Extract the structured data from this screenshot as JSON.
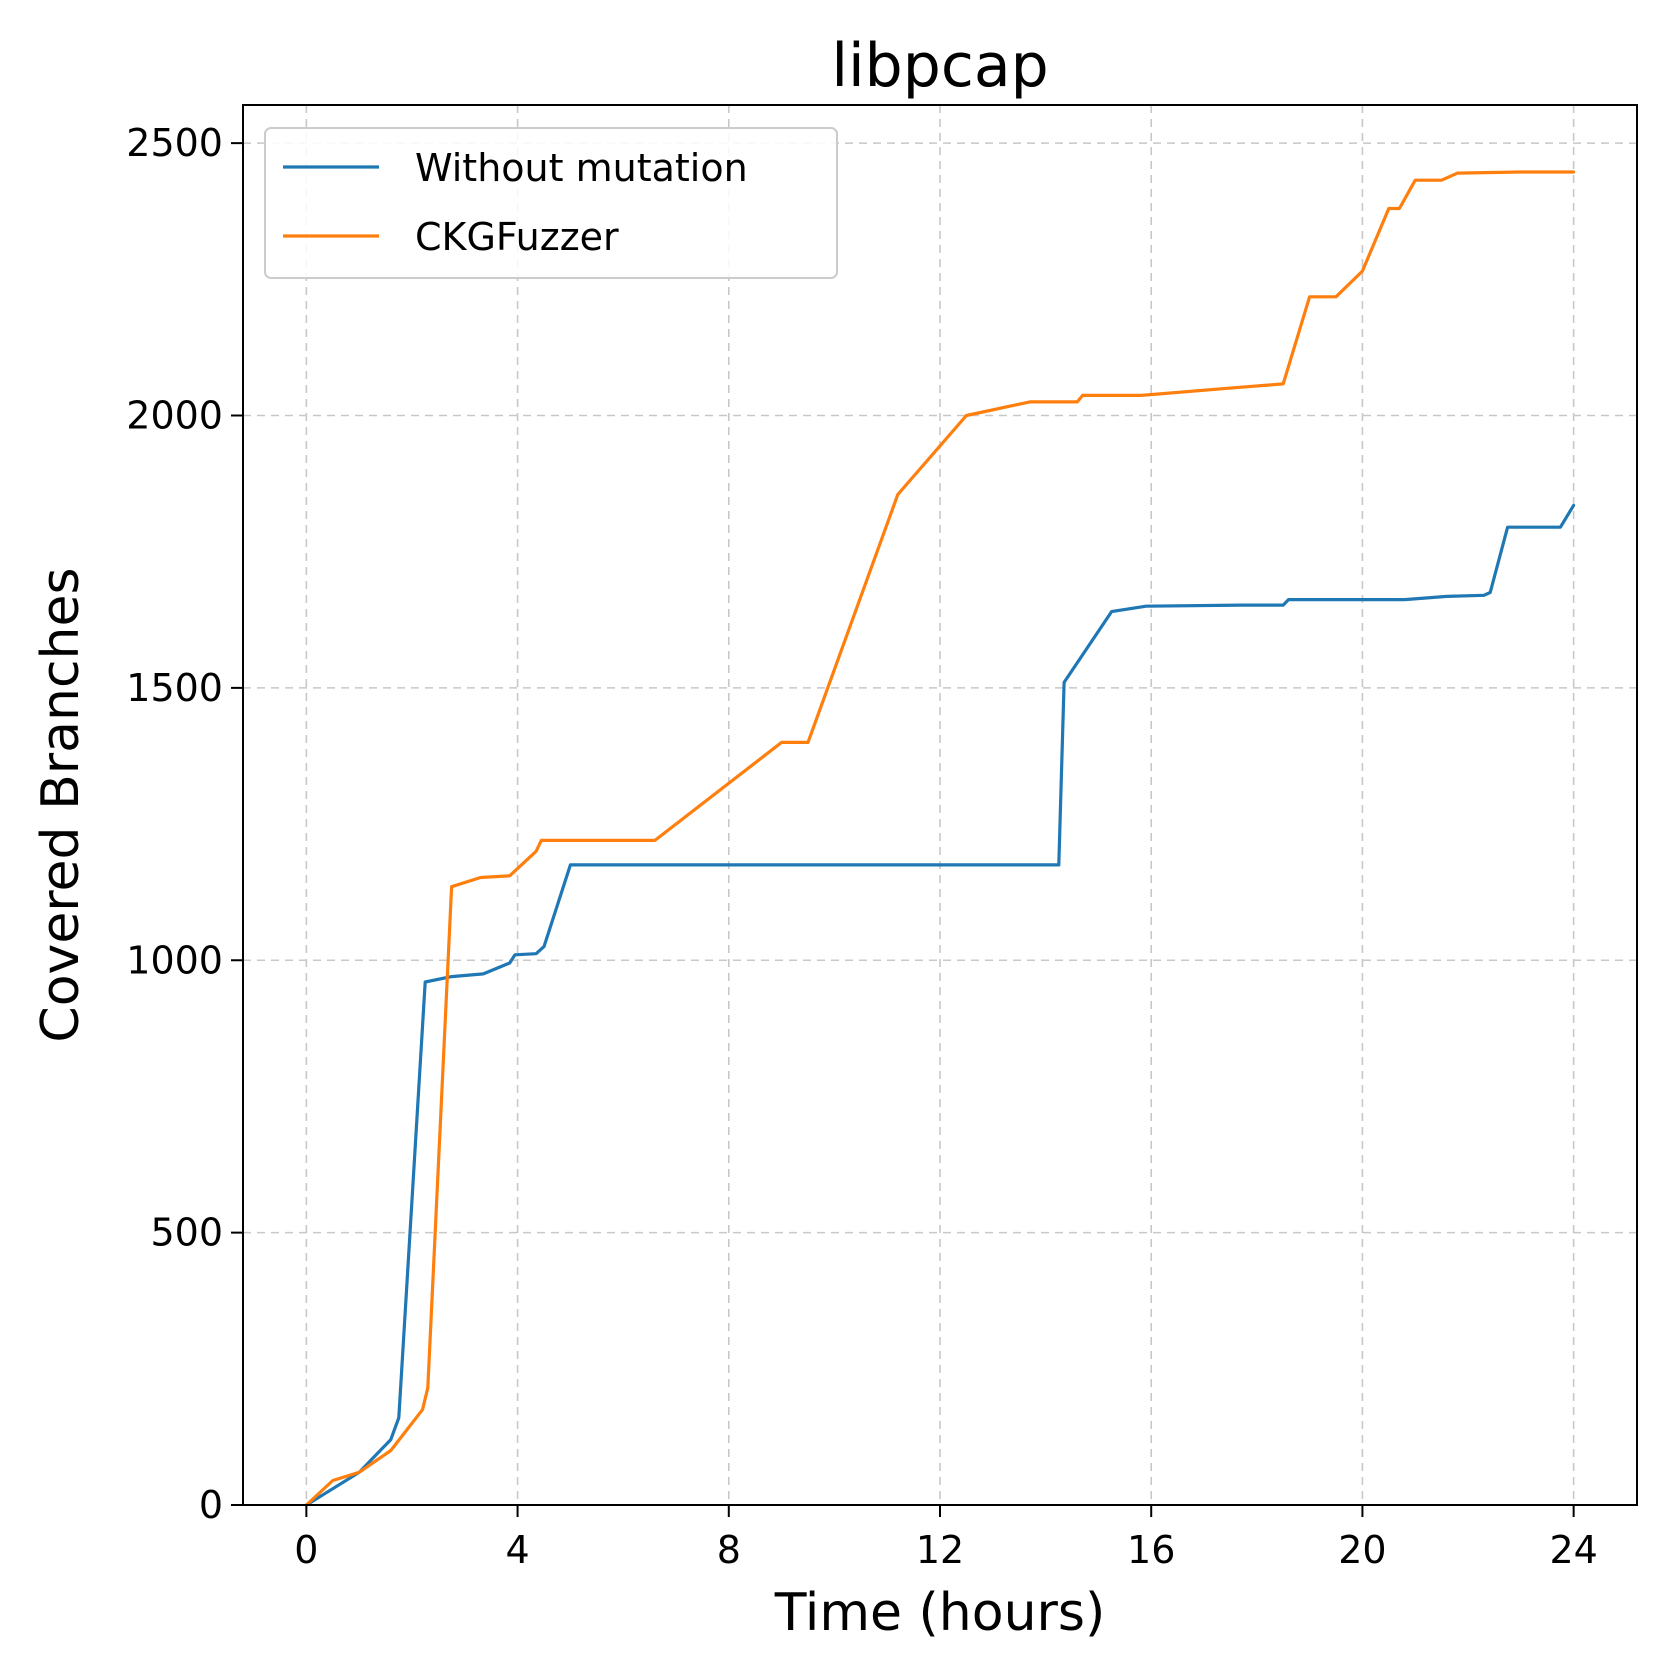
{
  "chart_data": {
    "type": "line",
    "title": "libpcap",
    "xlabel": "Time (hours)",
    "ylabel": "Covered Branches",
    "xlim": [
      -1.2,
      25.2
    ],
    "ylim": [
      0,
      2570
    ],
    "xticks": [
      0,
      4,
      8,
      12,
      16,
      20,
      24
    ],
    "yticks": [
      0,
      500,
      1000,
      1500,
      2000,
      2500
    ],
    "grid": true,
    "legend_position": "upper-left",
    "series": [
      {
        "name": "Without mutation",
        "color": "#1f77b4",
        "x": [
          0,
          0.5,
          1.0,
          1.6,
          1.75,
          2.25,
          2.75,
          3.35,
          3.85,
          3.95,
          4.35,
          4.5,
          5.0,
          10.0,
          14.25,
          14.35,
          15.25,
          15.9,
          17.7,
          18.5,
          18.6,
          20.8,
          21.6,
          22.3,
          22.42,
          22.75,
          23.75,
          24.0
        ],
        "y": [
          0,
          30,
          60,
          120,
          160,
          960,
          970,
          975,
          995,
          1010,
          1012,
          1025,
          1175,
          1175,
          1175,
          1510,
          1640,
          1650,
          1652,
          1652,
          1662,
          1662,
          1668,
          1670,
          1675,
          1795,
          1795,
          1835
        ]
      },
      {
        "name": "CKGFuzzer",
        "color": "#ff7f0e",
        "x": [
          0,
          0.5,
          1.0,
          1.6,
          2.2,
          2.3,
          2.75,
          3.3,
          3.85,
          4.35,
          4.45,
          6.6,
          9.0,
          9.5,
          11.2,
          12.5,
          13.7,
          14.6,
          14.7,
          15.8,
          17.7,
          18.5,
          19.0,
          19.5,
          20.0,
          20.5,
          20.7,
          21.0,
          21.5,
          21.8,
          23.0,
          24.0
        ],
        "y": [
          0,
          45,
          60,
          100,
          175,
          215,
          1135,
          1152,
          1155,
          1200,
          1220,
          1220,
          1400,
          1400,
          1855,
          2000,
          2025,
          2025,
          2037,
          2037,
          2052,
          2058,
          2218,
          2218,
          2265,
          2380,
          2380,
          2432,
          2432,
          2445,
          2447,
          2447
        ]
      }
    ]
  }
}
